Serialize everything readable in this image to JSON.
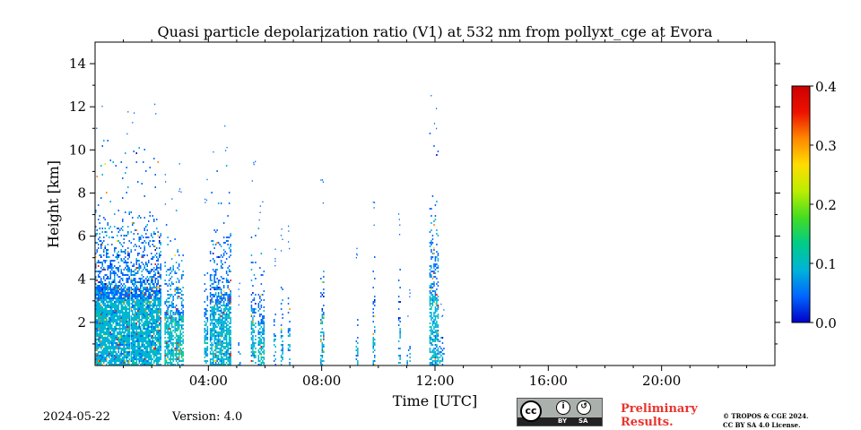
{
  "chart_data": {
    "type": "heatmap",
    "title": "Quasi particle depolarization ratio (V1) at 532 nm from pollyxt_cge at Evora",
    "xlabel": "Time [UTC]",
    "ylabel": "Height [km]",
    "xlim_hours": [
      0,
      24
    ],
    "ylim_km": [
      0,
      15
    ],
    "xticks": [
      {
        "hour": 4,
        "label": "04:00"
      },
      {
        "hour": 8,
        "label": "08:00"
      },
      {
        "hour": 12,
        "label": "12:00"
      },
      {
        "hour": 16,
        "label": "16:00"
      },
      {
        "hour": 20,
        "label": "20:00"
      }
    ],
    "yticks": [
      {
        "km": 2,
        "label": "2"
      },
      {
        "km": 4,
        "label": "4"
      },
      {
        "km": 6,
        "label": "6"
      },
      {
        "km": 8,
        "label": "8"
      },
      {
        "km": 10,
        "label": "10"
      },
      {
        "km": 12,
        "label": "12"
      },
      {
        "km": 14,
        "label": "14"
      }
    ],
    "colorbar": {
      "range": [
        0.0,
        0.4
      ],
      "ticks": [
        {
          "value": 0.0,
          "label": "0.0"
        },
        {
          "value": 0.1,
          "label": "0.1"
        },
        {
          "value": 0.2,
          "label": "0.2"
        },
        {
          "value": 0.3,
          "label": "0.3"
        },
        {
          "value": 0.4,
          "label": "0.4"
        }
      ],
      "colormap": [
        "#0000c8",
        "#0066ff",
        "#00b3d9",
        "#00cc88",
        "#44dd22",
        "#bbee00",
        "#ffdd00",
        "#ff8800",
        "#ee1100",
        "#cc0000"
      ]
    },
    "observations": [
      {
        "start": 0.0,
        "end": 1.2,
        "top_km": 10.5,
        "density": 0.9,
        "value": 0.07
      },
      {
        "start": 1.25,
        "end": 2.3,
        "top_km": 10.5,
        "density": 0.85,
        "value": 0.07
      },
      {
        "start": 2.45,
        "end": 2.75,
        "top_km": 7.5,
        "density": 0.7,
        "value": 0.08
      },
      {
        "start": 2.8,
        "end": 3.1,
        "top_km": 8.0,
        "density": 0.7,
        "value": 0.08
      },
      {
        "start": 3.85,
        "end": 3.95,
        "top_km": 7.0,
        "density": 0.6,
        "value": 0.07
      },
      {
        "start": 4.05,
        "end": 4.8,
        "top_km": 9.5,
        "density": 0.75,
        "value": 0.07
      },
      {
        "start": 5.05,
        "end": 5.1,
        "top_km": 2.5,
        "density": 0.5,
        "value": 0.06
      },
      {
        "start": 5.5,
        "end": 5.65,
        "top_km": 8.0,
        "density": 0.6,
        "value": 0.07
      },
      {
        "start": 5.75,
        "end": 5.95,
        "top_km": 6.5,
        "density": 0.6,
        "value": 0.07
      },
      {
        "start": 6.3,
        "end": 6.35,
        "top_km": 4.5,
        "density": 0.5,
        "value": 0.06
      },
      {
        "start": 6.55,
        "end": 6.6,
        "top_km": 5.0,
        "density": 0.5,
        "value": 0.06
      },
      {
        "start": 6.8,
        "end": 6.85,
        "top_km": 5.0,
        "density": 0.5,
        "value": 0.06
      },
      {
        "start": 7.95,
        "end": 8.05,
        "top_km": 7.5,
        "density": 0.45,
        "value": 0.06
      },
      {
        "start": 9.2,
        "end": 9.25,
        "top_km": 4.0,
        "density": 0.4,
        "value": 0.06
      },
      {
        "start": 9.8,
        "end": 9.85,
        "top_km": 6.5,
        "density": 0.4,
        "value": 0.06
      },
      {
        "start": 10.7,
        "end": 10.75,
        "top_km": 6.0,
        "density": 0.4,
        "value": 0.06
      },
      {
        "start": 11.0,
        "end": 11.1,
        "top_km": 2.0,
        "density": 0.4,
        "value": 0.06
      },
      {
        "start": 11.8,
        "end": 12.1,
        "top_km": 11.0,
        "density": 0.6,
        "value": 0.07
      },
      {
        "start": 12.15,
        "end": 12.3,
        "top_km": 2.2,
        "density": 0.5,
        "value": 0.06
      }
    ]
  },
  "footer": {
    "date": "2024-05-22",
    "version": "Version: 4.0",
    "preliminary_line1": "Preliminary",
    "preliminary_line2": "Results.",
    "copyright_line1": "© TROPOS & CGE 2024.",
    "copyright_line2": "CC BY SA 4.0 License.",
    "license_badge": {
      "cc": "cc",
      "by": "BY",
      "sa": "SA"
    }
  }
}
